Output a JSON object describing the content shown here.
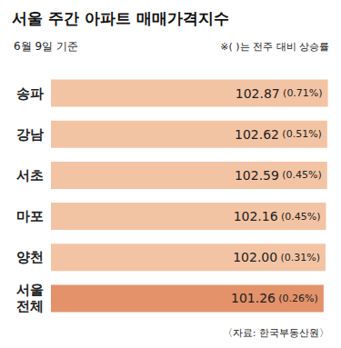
{
  "chart_data": {
    "type": "bar",
    "orientation": "horizontal",
    "title": "서울 주간 아파트 매매가격지수",
    "subtitle": "6월 9일 기준",
    "note": "※( )는 전주 대비 상승률",
    "source": "〈자료: 한국부동산원〉",
    "annotation": "매매가격지수",
    "categories": [
      "송파",
      "강남",
      "서초",
      "마포",
      "양천",
      "서울 전체"
    ],
    "values": [
      102.87,
      102.62,
      102.59,
      102.16,
      102.0,
      101.26
    ],
    "value_labels": [
      "102.87",
      "102.62",
      "102.59",
      "102.16",
      "102.00",
      "101.26"
    ],
    "change_labels": [
      "(0.71%)",
      "(0.51%)",
      "(0.45%)",
      "(0.45%)",
      "(0.31%)",
      "(0.26%)"
    ],
    "colors": [
      "#f3c4a4",
      "#f3c4a4",
      "#f3c4a4",
      "#f3c4a4",
      "#f3c4a4",
      "#e3926a"
    ],
    "xlim": [
      0,
      103
    ],
    "tick_labels": false,
    "data_labels": true,
    "grid": false
  }
}
